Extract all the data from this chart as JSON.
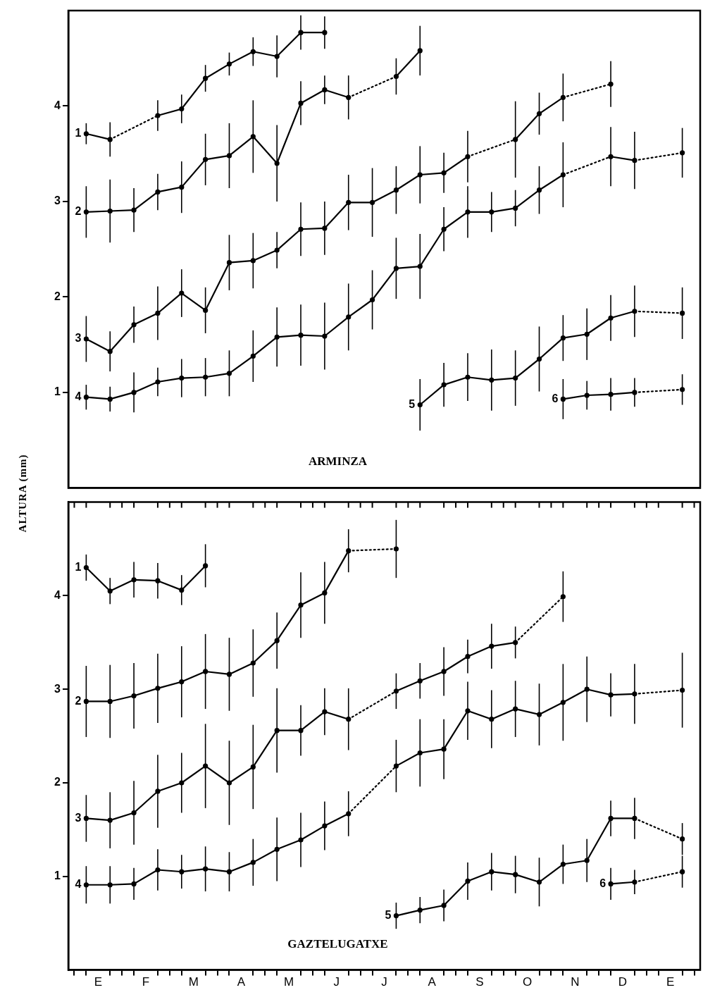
{
  "chart_data": [
    {
      "type": "line",
      "title": "ARMINZA",
      "ylabel": "ALTURA (mm)",
      "categories": [
        null,
        null,
        null,
        null,
        null,
        null,
        null,
        null,
        null,
        null,
        null,
        null,
        null,
        null,
        null,
        null,
        null,
        null,
        null,
        null,
        null,
        null,
        null,
        null,
        null,
        null,
        null,
        null,
        null,
        null,
        null,
        null,
        null,
        null,
        null,
        null,
        null,
        null,
        null,
        null,
        null,
        null,
        null,
        null,
        null,
        null,
        null,
        null,
        null,
        null,
        null,
        null,
        null
      ],
      "ylim": [
        0,
        5
      ],
      "yticks": [
        1,
        2,
        3,
        4
      ],
      "tick_labels": "y",
      "grid": false,
      "marker": "circle",
      "line_style": "solid",
      "series": [
        {
          "name": "1",
          "color": "#000000",
          "values": [
            null,
            3.71,
            null,
            3.65,
            null,
            null,
            null,
            3.9,
            null,
            3.97,
            null,
            4.29,
            null,
            4.44,
            null,
            4.57,
            null,
            4.52,
            null,
            4.77,
            null,
            4.77,
            null,
            null,
            null,
            null,
            null,
            null,
            null,
            null,
            null,
            null,
            null,
            null,
            null,
            null,
            null,
            null,
            null,
            null,
            null,
            null,
            null,
            null,
            null,
            null,
            null,
            null,
            null,
            null,
            null,
            null,
            null
          ],
          "errors": [
            null,
            0.11,
            null,
            0.18,
            null,
            null,
            null,
            0.16,
            null,
            0.15,
            null,
            0.14,
            null,
            0.12,
            null,
            0.15,
            null,
            0.22,
            null,
            0.18,
            null,
            0.17,
            null,
            null,
            null,
            null,
            null,
            null,
            null,
            null,
            null,
            null,
            null,
            null,
            null,
            null,
            null,
            null,
            null,
            null,
            null,
            null,
            null,
            null,
            null,
            null,
            null,
            null,
            null,
            null,
            null,
            null,
            null
          ]
        },
        {
          "name": "2",
          "color": "#000000",
          "values": [
            null,
            2.89,
            null,
            2.9,
            null,
            2.91,
            null,
            3.1,
            null,
            3.15,
            null,
            3.44,
            null,
            3.48,
            null,
            3.68,
            null,
            3.4,
            null,
            4.03,
            null,
            4.17,
            null,
            4.09,
            null,
            null,
            null,
            4.31,
            null,
            4.58,
            null,
            null,
            null,
            null,
            null,
            null,
            null,
            null,
            null,
            null,
            null,
            null,
            null,
            null,
            null,
            null,
            null,
            null,
            null,
            null,
            null,
            null,
            null
          ],
          "errors": [
            null,
            0.27,
            null,
            0.33,
            null,
            0.23,
            null,
            0.19,
            null,
            0.27,
            null,
            0.27,
            null,
            0.34,
            null,
            0.38,
            null,
            0.4,
            null,
            0.23,
            null,
            0.15,
            null,
            0.23,
            null,
            null,
            null,
            0.19,
            null,
            0.26,
            null,
            null,
            null,
            null,
            null,
            null,
            null,
            null,
            null,
            null,
            null,
            null,
            null,
            null,
            null,
            null,
            null,
            null,
            null,
            null,
            null,
            null,
            null
          ]
        },
        {
          "name": "3",
          "color": "#000000",
          "values": [
            null,
            1.56,
            null,
            1.43,
            null,
            1.71,
            null,
            1.83,
            null,
            2.04,
            null,
            1.86,
            null,
            2.36,
            null,
            2.38,
            null,
            2.49,
            null,
            2.71,
            null,
            2.72,
            null,
            2.99,
            null,
            2.99,
            null,
            3.12,
            null,
            3.28,
            null,
            3.3,
            null,
            3.47,
            null,
            null,
            null,
            3.65,
            null,
            3.92,
            null,
            4.09,
            null,
            null,
            null,
            4.23,
            null,
            null,
            null,
            null,
            null,
            null,
            null
          ],
          "errors": [
            null,
            0.24,
            null,
            0.21,
            null,
            0.19,
            null,
            0.28,
            null,
            0.25,
            null,
            0.24,
            null,
            0.29,
            null,
            0.29,
            null,
            0.19,
            null,
            0.28,
            null,
            0.28,
            null,
            0.29,
            null,
            0.36,
            null,
            0.25,
            null,
            0.3,
            null,
            0.21,
            null,
            0.27,
            null,
            null,
            null,
            0.4,
            null,
            0.22,
            null,
            0.25,
            null,
            null,
            null,
            0.24,
            null,
            null,
            null,
            null,
            null,
            null,
            null
          ]
        },
        {
          "name": "4",
          "color": "#000000",
          "values": [
            null,
            0.95,
            null,
            0.93,
            null,
            1.0,
            null,
            1.11,
            null,
            1.15,
            null,
            1.16,
            null,
            1.2,
            null,
            1.38,
            null,
            1.58,
            null,
            1.6,
            null,
            1.59,
            null,
            1.79,
            null,
            1.97,
            null,
            2.3,
            null,
            2.32,
            null,
            2.71,
            null,
            2.89,
            null,
            2.89,
            null,
            2.93,
            null,
            3.12,
            null,
            3.28,
            null,
            null,
            null,
            3.47,
            null,
            3.43,
            null,
            null,
            null,
            3.51,
            null
          ],
          "errors": [
            null,
            0.13,
            null,
            0.13,
            null,
            0.21,
            null,
            0.15,
            null,
            0.2,
            null,
            0.2,
            null,
            0.24,
            null,
            0.27,
            null,
            0.31,
            null,
            0.32,
            null,
            0.35,
            null,
            0.35,
            null,
            0.31,
            null,
            0.32,
            null,
            0.34,
            null,
            0.23,
            null,
            0.27,
            null,
            0.21,
            null,
            0.19,
            null,
            0.25,
            null,
            0.34,
            null,
            null,
            null,
            0.31,
            null,
            0.3,
            null,
            null,
            null,
            0.26,
            null
          ]
        },
        {
          "name": "5",
          "color": "#000000",
          "values": [
            null,
            null,
            null,
            null,
            null,
            null,
            null,
            null,
            null,
            null,
            null,
            null,
            null,
            null,
            null,
            null,
            null,
            null,
            null,
            null,
            null,
            null,
            null,
            null,
            null,
            null,
            null,
            null,
            null,
            0.87,
            null,
            1.08,
            null,
            1.16,
            null,
            1.13,
            null,
            1.15,
            null,
            1.35,
            null,
            1.57,
            null,
            1.61,
            null,
            1.78,
            null,
            1.85,
            null,
            null,
            null,
            1.83,
            null
          ],
          "errors": [
            null,
            null,
            null,
            null,
            null,
            null,
            null,
            null,
            null,
            null,
            null,
            null,
            null,
            null,
            null,
            null,
            null,
            null,
            null,
            null,
            null,
            null,
            null,
            null,
            null,
            null,
            null,
            null,
            null,
            0.27,
            null,
            0.23,
            null,
            0.25,
            null,
            0.32,
            null,
            0.29,
            null,
            0.34,
            null,
            0.24,
            null,
            0.27,
            null,
            0.24,
            null,
            0.27,
            null,
            null,
            null,
            0.27,
            null
          ]
        },
        {
          "name": "6",
          "color": "#000000",
          "values": [
            null,
            null,
            null,
            null,
            null,
            null,
            null,
            null,
            null,
            null,
            null,
            null,
            null,
            null,
            null,
            null,
            null,
            null,
            null,
            null,
            null,
            null,
            null,
            null,
            null,
            null,
            null,
            null,
            null,
            null,
            null,
            null,
            null,
            null,
            null,
            null,
            null,
            null,
            null,
            null,
            null,
            0.93,
            null,
            0.97,
            null,
            0.98,
            null,
            1.0,
            null,
            null,
            null,
            1.03,
            null
          ],
          "errors": [
            null,
            null,
            null,
            null,
            null,
            null,
            null,
            null,
            null,
            null,
            null,
            null,
            null,
            null,
            null,
            null,
            null,
            null,
            null,
            null,
            null,
            null,
            null,
            null,
            null,
            null,
            null,
            null,
            null,
            null,
            null,
            null,
            null,
            null,
            null,
            null,
            null,
            null,
            null,
            null,
            null,
            0.21,
            null,
            0.15,
            null,
            0.17,
            null,
            0.15,
            null,
            null,
            null,
            0.16,
            null
          ]
        }
      ]
    },
    {
      "type": "line",
      "title": "GAZTELUGATXE",
      "categories": [
        null,
        null,
        "E",
        null,
        null,
        null,
        "F",
        null,
        null,
        null,
        "M",
        null,
        null,
        null,
        "A",
        null,
        null,
        null,
        "M",
        null,
        null,
        null,
        "J",
        null,
        null,
        null,
        "J",
        null,
        null,
        null,
        "A",
        null,
        null,
        null,
        "S",
        null,
        null,
        null,
        "O",
        null,
        null,
        null,
        "N",
        null,
        null,
        null,
        "D",
        null,
        null,
        null,
        "E",
        null,
        null
      ],
      "ylim": [
        0,
        5
      ],
      "yticks": [
        1,
        2,
        3,
        4
      ],
      "grid": false,
      "marker": "circle",
      "line_style": "solid",
      "series": [
        {
          "name": "1",
          "color": "#000000",
          "values": [
            null,
            4.3,
            null,
            4.05,
            null,
            4.17,
            null,
            4.16,
            null,
            4.06,
            null,
            4.32,
            null,
            null,
            null,
            null,
            null,
            null,
            null,
            null,
            null,
            null,
            null,
            null,
            null,
            null,
            null,
            null,
            null,
            null,
            null,
            null,
            null,
            null,
            null,
            null,
            null,
            null,
            null,
            null,
            null,
            null,
            null,
            null,
            null,
            null,
            null,
            null,
            null,
            null,
            null,
            null,
            null
          ],
          "errors": [
            null,
            0.14,
            null,
            0.14,
            null,
            0.19,
            null,
            0.19,
            null,
            0.16,
            null,
            0.23,
            null,
            null,
            null,
            null,
            null,
            null,
            null,
            null,
            null,
            null,
            null,
            null,
            null,
            null,
            null,
            null,
            null,
            null,
            null,
            null,
            null,
            null,
            null,
            null,
            null,
            null,
            null,
            null,
            null,
            null,
            null,
            null,
            null,
            null,
            null,
            null,
            null,
            null,
            null,
            null,
            null
          ]
        },
        {
          "name": "2",
          "color": "#000000",
          "values": [
            null,
            2.87,
            null,
            2.87,
            null,
            2.93,
            null,
            3.01,
            null,
            3.08,
            null,
            3.19,
            null,
            3.16,
            null,
            3.28,
            null,
            3.52,
            null,
            3.9,
            null,
            4.03,
            null,
            4.48,
            null,
            null,
            null,
            4.5,
            null,
            null,
            null,
            null,
            null,
            null,
            null,
            null,
            null,
            null,
            null,
            null,
            null,
            null,
            null,
            null,
            null,
            null,
            null,
            null,
            null,
            null,
            null,
            null,
            null
          ],
          "errors": [
            null,
            0.38,
            null,
            0.39,
            null,
            0.35,
            null,
            0.37,
            null,
            0.38,
            null,
            0.4,
            null,
            0.39,
            null,
            0.36,
            null,
            0.3,
            null,
            0.35,
            null,
            0.33,
            null,
            0.23,
            null,
            null,
            null,
            0.31,
            null,
            null,
            null,
            null,
            null,
            null,
            null,
            null,
            null,
            null,
            null,
            null,
            null,
            null,
            null,
            null,
            null,
            null,
            null,
            null,
            null,
            null,
            null,
            null,
            null
          ]
        },
        {
          "name": "3",
          "color": "#000000",
          "values": [
            null,
            1.62,
            null,
            1.6,
            null,
            1.68,
            null,
            1.91,
            null,
            2.0,
            null,
            2.18,
            null,
            2.0,
            null,
            2.17,
            null,
            2.56,
            null,
            2.56,
            null,
            2.76,
            null,
            2.68,
            null,
            null,
            null,
            2.98,
            null,
            3.09,
            null,
            3.19,
            null,
            3.35,
            null,
            3.46,
            null,
            3.5,
            null,
            null,
            null,
            3.99,
            null,
            null,
            null,
            null,
            null,
            null,
            null,
            null,
            null,
            null,
            null
          ],
          "errors": [
            null,
            0.25,
            null,
            0.3,
            null,
            0.34,
            null,
            0.39,
            null,
            0.32,
            null,
            0.45,
            null,
            0.45,
            null,
            0.45,
            null,
            0.45,
            null,
            0.27,
            null,
            0.25,
            null,
            0.33,
            null,
            null,
            null,
            0.19,
            null,
            0.19,
            null,
            0.26,
            null,
            0.18,
            null,
            0.24,
            null,
            0.17,
            null,
            null,
            null,
            0.27,
            null,
            null,
            null,
            null,
            null,
            null,
            null,
            null,
            null,
            null,
            null
          ]
        },
        {
          "name": "4",
          "color": "#000000",
          "values": [
            null,
            0.91,
            null,
            0.91,
            null,
            0.92,
            null,
            1.07,
            null,
            1.05,
            null,
            1.08,
            null,
            1.05,
            null,
            1.15,
            null,
            1.29,
            null,
            1.39,
            null,
            1.54,
            null,
            1.67,
            null,
            null,
            null,
            2.18,
            null,
            2.32,
            null,
            2.36,
            null,
            2.77,
            null,
            2.68,
            null,
            2.79,
            null,
            2.73,
            null,
            2.86,
            null,
            3.0,
            null,
            2.94,
            null,
            2.95,
            null,
            null,
            null,
            2.99,
            null
          ],
          "errors": [
            null,
            0.2,
            null,
            0.2,
            null,
            0.17,
            null,
            0.22,
            null,
            0.18,
            null,
            0.24,
            null,
            0.21,
            null,
            0.25,
            null,
            0.34,
            null,
            0.29,
            null,
            0.26,
            null,
            0.24,
            null,
            null,
            null,
            0.28,
            null,
            0.36,
            null,
            0.32,
            null,
            0.31,
            null,
            0.31,
            null,
            0.3,
            null,
            0.33,
            null,
            0.41,
            null,
            0.35,
            null,
            0.23,
            null,
            0.32,
            null,
            null,
            null,
            0.4,
            null
          ]
        },
        {
          "name": "5",
          "color": "#000000",
          "values": [
            null,
            null,
            null,
            null,
            null,
            null,
            null,
            null,
            null,
            null,
            null,
            null,
            null,
            null,
            null,
            null,
            null,
            null,
            null,
            null,
            null,
            null,
            null,
            null,
            null,
            null,
            null,
            0.58,
            null,
            0.64,
            null,
            0.69,
            null,
            0.95,
            null,
            1.05,
            null,
            1.02,
            null,
            0.94,
            null,
            1.13,
            null,
            1.17,
            null,
            1.62,
            null,
            1.62,
            null,
            null,
            null,
            1.4,
            null
          ],
          "errors": [
            null,
            null,
            null,
            null,
            null,
            null,
            null,
            null,
            null,
            null,
            null,
            null,
            null,
            null,
            null,
            null,
            null,
            null,
            null,
            null,
            null,
            null,
            null,
            null,
            null,
            null,
            null,
            0.14,
            null,
            0.14,
            null,
            0.17,
            null,
            0.2,
            null,
            0.2,
            null,
            0.2,
            null,
            0.26,
            null,
            0.21,
            null,
            0.23,
            null,
            0.19,
            null,
            0.22,
            null,
            null,
            null,
            0.17,
            null
          ]
        },
        {
          "name": "6",
          "color": "#000000",
          "values": [
            null,
            null,
            null,
            null,
            null,
            null,
            null,
            null,
            null,
            null,
            null,
            null,
            null,
            null,
            null,
            null,
            null,
            null,
            null,
            null,
            null,
            null,
            null,
            null,
            null,
            null,
            null,
            null,
            null,
            null,
            null,
            null,
            null,
            null,
            null,
            null,
            null,
            null,
            null,
            null,
            null,
            null,
            null,
            null,
            null,
            0.92,
            null,
            0.94,
            null,
            null,
            null,
            1.05,
            null
          ],
          "errors": [
            null,
            null,
            null,
            null,
            null,
            null,
            null,
            null,
            null,
            null,
            null,
            null,
            null,
            null,
            null,
            null,
            null,
            null,
            null,
            null,
            null,
            null,
            null,
            null,
            null,
            null,
            null,
            null,
            null,
            null,
            null,
            null,
            null,
            null,
            null,
            null,
            null,
            null,
            null,
            null,
            null,
            null,
            null,
            null,
            null,
            0.17,
            null,
            0.13,
            null,
            null,
            null,
            0.17,
            null
          ]
        }
      ]
    }
  ]
}
